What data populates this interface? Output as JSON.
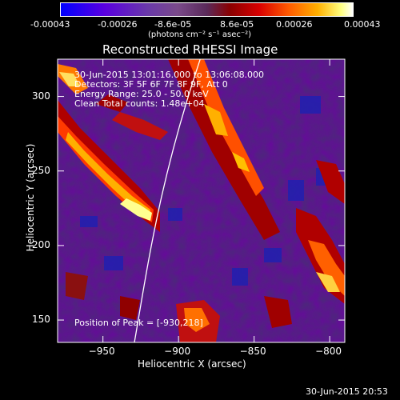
{
  "colorbar": {
    "tick_labels": [
      "-0.00043",
      "-0.00026",
      "-8.6e-05",
      "8.6e-05",
      "0.00026",
      "0.00043"
    ],
    "unit_label": "(photons cm⁻² s⁻¹ asec⁻²)"
  },
  "chart_data": {
    "type": "heatmap",
    "title": "Reconstructed RHESSI Image",
    "xlabel": "Heliocentric X (arcsec)",
    "ylabel": "Heliocentric Y (arcsec)",
    "xlim": [
      -980,
      -790
    ],
    "ylim": [
      135,
      325
    ],
    "x_ticks": [
      -950,
      -900,
      -850,
      -800
    ],
    "y_ticks": [
      150,
      200,
      250,
      300
    ],
    "x_tick_labels": [
      "−950",
      "−900",
      "−850",
      "−800"
    ],
    "y_tick_labels": [
      "150",
      "200",
      "250",
      "300"
    ],
    "color_range": [
      -0.00043,
      0.00043
    ],
    "annotations": [
      "30-Jun-2015 13:01:16.000 to 13:06:08.000",
      "Detectors: 3F 5F 6F 7F 8F 9F, Att 0",
      "Energy Range: 25.0 - 50.0 keV",
      "Clean     Total counts: 1.48e+04"
    ],
    "peak_label": "Position of Peak = [-930,218]",
    "peak_position": [
      -930,
      218
    ]
  },
  "footer_timestamp": "30-Jun-2015 20:53"
}
